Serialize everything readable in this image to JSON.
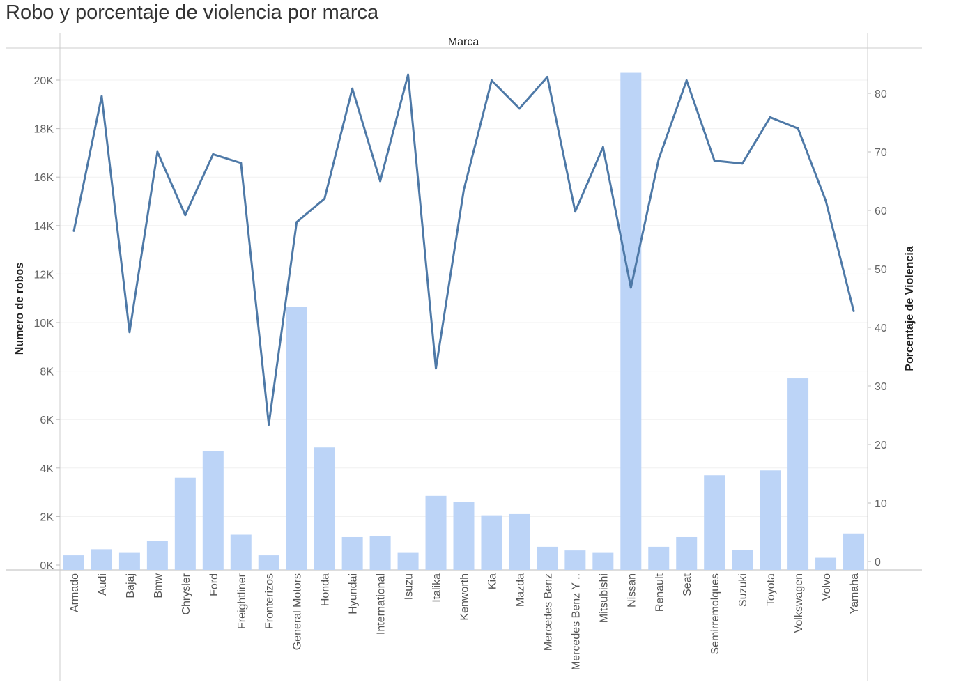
{
  "title": "Robo y porcentaje de violencia por marca",
  "chart_data": {
    "type": "bar",
    "title": "Robo y porcentaje de violencia por marca",
    "xlabel": "Marca",
    "ylabel": "Numero de robos",
    "y2label": "Porcentaje de Violencia",
    "ylim": [
      0,
      20000
    ],
    "y2lim": [
      0,
      80
    ],
    "categories": [
      "Armado",
      "Audi",
      "Bajaj",
      "Bmw",
      "Chrysler",
      "Ford",
      "Freightliner",
      "Fronterizos",
      "General Motors",
      "Honda",
      "Hyundai",
      "International",
      "Isuzu",
      "Italika",
      "Kenworth",
      "Kia",
      "Mazda",
      "Mercedes Benz",
      "Mercedes Benz Y ..",
      "Mitsubishi",
      "Nissan",
      "Renault",
      "Seat",
      "Semirremolques",
      "Suzuki",
      "Toyota",
      "Volkswagen",
      "Volvo",
      "Yamaha"
    ],
    "yticks": [
      "0K",
      "2K",
      "4K",
      "6K",
      "8K",
      "10K",
      "12K",
      "14K",
      "16K",
      "18K",
      "20K"
    ],
    "y2ticks": [
      "0",
      "10",
      "20",
      "30",
      "40",
      "50",
      "60",
      "70",
      "80"
    ],
    "series": [
      {
        "name": "Numero de robos",
        "type": "bar",
        "color": "#bcd4f7",
        "values": [
          400,
          650,
          500,
          1000,
          3600,
          4700,
          1250,
          400,
          10650,
          4850,
          1150,
          1200,
          500,
          2850,
          2600,
          2050,
          2100,
          750,
          600,
          500,
          20300,
          750,
          1150,
          3700,
          620,
          3900,
          7700,
          300,
          1300
        ]
      },
      {
        "name": "Porcentaje de Violencia",
        "type": "line",
        "color": "#4e79a7",
        "values": [
          56.5,
          79.5,
          39.2,
          70.0,
          59.2,
          69.6,
          68.1,
          23.4,
          58.0,
          62.0,
          80.8,
          65.0,
          83.2,
          33.0,
          63.5,
          82.2,
          77.4,
          82.8,
          59.8,
          70.8,
          46.8,
          68.8,
          82.2,
          68.5,
          68.0,
          75.9,
          74.0,
          61.6,
          42.8
        ]
      }
    ],
    "grid": true,
    "legend": "none"
  }
}
